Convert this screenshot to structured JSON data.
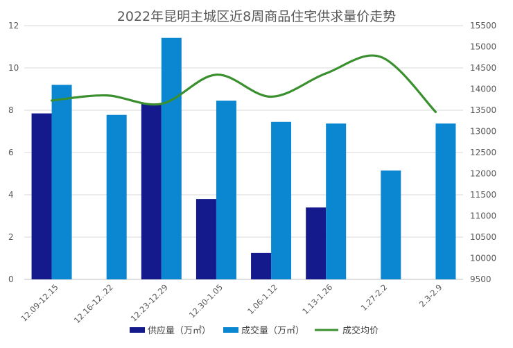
{
  "chart_data": {
    "type": "bar",
    "title": "2022年昆明主城区近8周商品住宅供求量价走势",
    "categories": [
      "12.09-12.15",
      "12.16-12..22",
      "12.23-12.29",
      "12.30-1.05",
      "1.06-1.12",
      "1.13-1.26",
      "1.27-2.2",
      "2.3-2.9"
    ],
    "series": [
      {
        "name": "供应量（万㎡）",
        "type": "bar",
        "axis": "left",
        "color": "#141a8c",
        "values": [
          7.85,
          0,
          8.3,
          3.8,
          1.25,
          3.4,
          0,
          0
        ]
      },
      {
        "name": "成交量（万㎡）",
        "type": "bar",
        "axis": "left",
        "color": "#0b87d1",
        "values": [
          9.2,
          7.78,
          11.42,
          8.45,
          7.45,
          7.37,
          5.15,
          7.37
        ]
      },
      {
        "name": "成交均价",
        "type": "line",
        "axis": "right",
        "color": "#3a8f2e",
        "values": [
          13730,
          13850,
          13650,
          14340,
          13820,
          14370,
          14760,
          13460
        ]
      }
    ],
    "yleft": {
      "min": 0,
      "max": 12,
      "ticks": [
        "0",
        "2",
        "4",
        "6",
        "8",
        "10",
        "12"
      ]
    },
    "yright": {
      "min": 9500,
      "max": 15500,
      "ticks": [
        "9500",
        "10000",
        "10500",
        "11000",
        "11500",
        "12000",
        "12500",
        "13000",
        "13500",
        "14000",
        "14500",
        "15000",
        "15500"
      ]
    },
    "grid": true,
    "legend_position": "bottom"
  }
}
